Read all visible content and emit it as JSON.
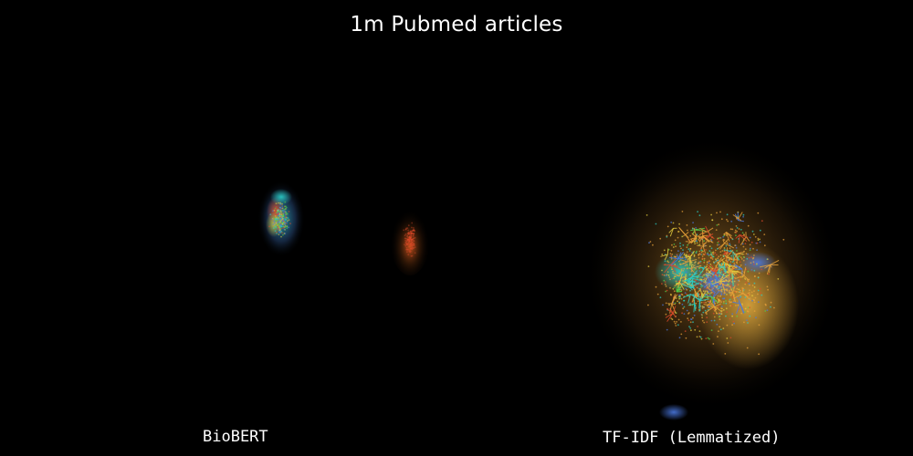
{
  "title": "1m Pubmed articles",
  "panels": {
    "left_label": "BioBERT",
    "right_label": "TF-IDF (Lemmatized)"
  },
  "colors": {
    "background": "#000000",
    "text": "#ffffff",
    "orange_gold": "#e8a33a",
    "teal": "#2ad0c8",
    "blue": "#4a78e0",
    "green": "#52d04a",
    "red": "#e04a2a",
    "yellow": "#e8d040"
  }
}
